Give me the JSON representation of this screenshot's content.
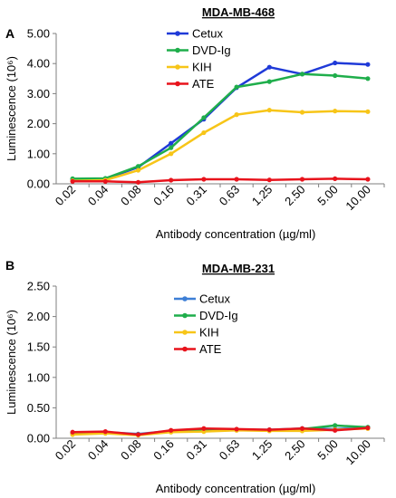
{
  "chart_data": [
    {
      "panel": "A",
      "type": "line",
      "title": "MDA-MB-468",
      "xlabel": "Antibody concentration (µg/ml)",
      "ylabel": "Luminescence (10⁶)",
      "categories": [
        "0.02",
        "0.04",
        "0.08",
        "0.16",
        "0.31",
        "0.63",
        "1.25",
        "2.50",
        "5.00",
        "10.00"
      ],
      "ylim": [
        0,
        5
      ],
      "yticks": [
        "0.00",
        "1.00",
        "2.00",
        "3.00",
        "4.00",
        "5.00"
      ],
      "legend_position": "top-left",
      "grid": false,
      "series": [
        {
          "name": "Cetux",
          "color": "#1f3ad8",
          "values": [
            0.15,
            0.17,
            0.55,
            1.35,
            2.15,
            3.2,
            3.88,
            3.65,
            4.02,
            3.97
          ]
        },
        {
          "name": "DVD-Ig",
          "color": "#1fae4b",
          "values": [
            0.17,
            0.18,
            0.58,
            1.2,
            2.2,
            3.22,
            3.4,
            3.65,
            3.6,
            3.5
          ]
        },
        {
          "name": "KIH",
          "color": "#f7c518",
          "values": [
            0.1,
            0.12,
            0.45,
            1.0,
            1.7,
            2.3,
            2.45,
            2.38,
            2.42,
            2.4
          ]
        },
        {
          "name": "ATE",
          "color": "#e8131c",
          "values": [
            0.08,
            0.08,
            0.05,
            0.12,
            0.15,
            0.15,
            0.13,
            0.15,
            0.17,
            0.15
          ]
        }
      ]
    },
    {
      "panel": "B",
      "type": "line",
      "title": "MDA-MB-231",
      "xlabel": "Antibody concentration (µg/ml)",
      "ylabel": "Luminescence (10⁶)",
      "categories": [
        "0.02",
        "0.04",
        "0.08",
        "0.16",
        "0.31",
        "0.63",
        "1.25",
        "2.50",
        "5.00",
        "10.00"
      ],
      "ylim": [
        0,
        2.5
      ],
      "yticks": [
        "0.00",
        "0.50",
        "1.00",
        "1.50",
        "2.00",
        "2.50"
      ],
      "legend_position": "top-left",
      "grid": false,
      "series": [
        {
          "name": "Cetux",
          "color": "#3d7fd6",
          "values": [
            0.09,
            0.1,
            0.07,
            0.12,
            0.15,
            0.14,
            0.14,
            0.16,
            0.15,
            0.18
          ]
        },
        {
          "name": "DVD-Ig",
          "color": "#1fae4b",
          "values": [
            0.08,
            0.1,
            0.06,
            0.11,
            0.14,
            0.14,
            0.13,
            0.15,
            0.21,
            0.18
          ]
        },
        {
          "name": "KIH",
          "color": "#f7c518",
          "values": [
            0.06,
            0.08,
            0.05,
            0.1,
            0.11,
            0.13,
            0.12,
            0.12,
            0.14,
            0.16
          ]
        },
        {
          "name": "ATE",
          "color": "#e8131c",
          "values": [
            0.1,
            0.11,
            0.06,
            0.13,
            0.16,
            0.15,
            0.14,
            0.16,
            0.13,
            0.17
          ]
        }
      ]
    }
  ]
}
